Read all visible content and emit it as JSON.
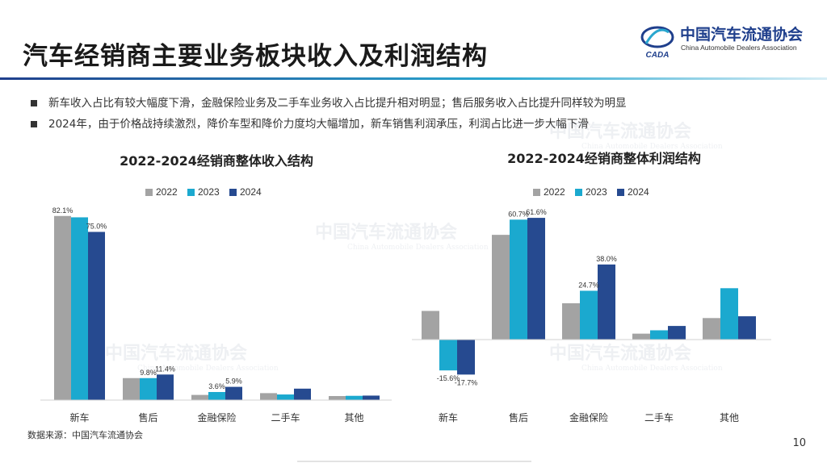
{
  "page": {
    "title": "汽车经销商主要业务板块收入及利润结构",
    "bullets": [
      "新车收入占比有较大幅度下滑，金融保险业务及二手车业务收入占比提升相对明显；售后服务收入占比提升同样较为明显",
      "2024年，由于价格战持续激烈，降价车型和降价力度均大幅增加，新车销售利润承压，利润占比进一步大幅下滑"
    ],
    "source": "数据来源：中国汽车流通协会",
    "page_number": "10"
  },
  "logo": {
    "cn": "中国汽车流通协会",
    "en": "China Automobile Dealers Association",
    "mark_text": "CADA"
  },
  "watermark": {
    "cn": "中国汽车流通协会",
    "en": "China Automobile Dealers Association"
  },
  "colors": {
    "2022": "#a3a3a3",
    "2023": "#1ba9cf",
    "2024": "#264a90",
    "accent": "#1f3f8c"
  },
  "chart_data": [
    {
      "type": "bar",
      "title": "2022-2024经销商整体收入结构",
      "categories": [
        "新车",
        "售后",
        "金融保险",
        "二手车",
        "其他"
      ],
      "series": [
        {
          "name": "2022",
          "values": [
            82.1,
            9.8,
            2.3,
            3.1,
            1.8
          ]
        },
        {
          "name": "2023",
          "values": [
            81.5,
            9.8,
            3.6,
            2.5,
            1.9
          ]
        },
        {
          "name": "2024",
          "values": [
            75.0,
            11.4,
            5.9,
            5.1,
            2.0
          ]
        }
      ],
      "data_labels": [
        {
          "series": 0,
          "index": 0,
          "text": "82.1%"
        },
        {
          "series": 2,
          "index": 0,
          "text": "75.0%"
        },
        {
          "series": 1,
          "index": 1,
          "text": "9.8%"
        },
        {
          "series": 2,
          "index": 1,
          "text": "11.4%"
        },
        {
          "series": 1,
          "index": 2,
          "text": "3.6%"
        },
        {
          "series": 2,
          "index": 2,
          "text": "5.9%"
        }
      ],
      "xlabel": "",
      "ylabel": "",
      "ylim": [
        0,
        90
      ],
      "grid": false,
      "legend": "top"
    },
    {
      "type": "bar",
      "title": "2022-2024经销商整体利润结构",
      "categories": [
        "新车",
        "售后",
        "金融保险",
        "二手车",
        "其他"
      ],
      "series": [
        {
          "name": "2022",
          "values": [
            14.5,
            53.0,
            18.4,
            3.0,
            10.9
          ]
        },
        {
          "name": "2023",
          "values": [
            -15.6,
            60.7,
            24.7,
            4.7,
            26.0
          ]
        },
        {
          "name": "2024",
          "values": [
            -17.7,
            61.6,
            38.0,
            6.9,
            11.8
          ]
        }
      ],
      "data_labels": [
        {
          "series": 1,
          "index": 0,
          "text": "-15.6%"
        },
        {
          "series": 2,
          "index": 0,
          "text": "-17.7%"
        },
        {
          "series": 1,
          "index": 1,
          "text": "60.7%"
        },
        {
          "series": 2,
          "index": 1,
          "text": "61.6%"
        },
        {
          "series": 1,
          "index": 2,
          "text": "24.7%"
        },
        {
          "series": 2,
          "index": 2,
          "text": "38.0%"
        }
      ],
      "xlabel": "",
      "ylabel": "",
      "ylim": [
        -25,
        65
      ],
      "grid": false,
      "legend": "top"
    }
  ]
}
